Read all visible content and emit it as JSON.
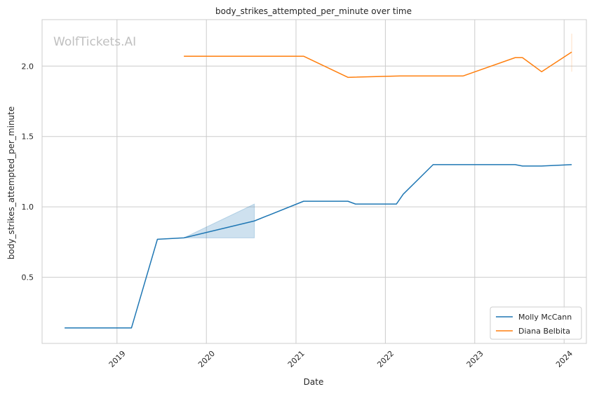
{
  "chart_data": {
    "type": "line",
    "title": "body_strikes_attempted_per_minute over time",
    "xlabel": "Date",
    "ylabel": "body_strikes_attempted_per_minute",
    "watermark": "WolfTickets.AI",
    "x_ticks": [
      "2019",
      "2020",
      "2021",
      "2022",
      "2023",
      "2024"
    ],
    "y_ticks": [
      "0.5",
      "1.0",
      "1.5",
      "2.0"
    ],
    "xlim": [
      "2018-03-01",
      "2024-04-01"
    ],
    "ylim": [
      0.03,
      2.33
    ],
    "grid": true,
    "legend_position": "lower-right",
    "series": [
      {
        "name": "Molly McCann",
        "color": "#1f77b4",
        "points": [
          [
            "2018-06-01",
            0.14
          ],
          [
            "2019-03-01",
            0.14
          ],
          [
            "2019-06-15",
            0.77
          ],
          [
            "2019-10-01",
            0.78
          ],
          [
            "2020-07-15",
            0.9
          ],
          [
            "2021-02-01",
            1.04
          ],
          [
            "2021-08-01",
            1.04
          ],
          [
            "2021-09-01",
            1.02
          ],
          [
            "2022-02-15",
            1.02
          ],
          [
            "2022-03-15",
            1.09
          ],
          [
            "2022-07-15",
            1.3
          ],
          [
            "2023-06-15",
            1.3
          ],
          [
            "2023-07-15",
            1.29
          ],
          [
            "2023-10-01",
            1.29
          ],
          [
            "2024-02-01",
            1.3
          ]
        ],
        "band": [
          [
            "2019-10-01",
            0.78,
            0.78
          ],
          [
            "2020-07-15",
            0.78,
            1.02
          ]
        ]
      },
      {
        "name": "Diana Belbita",
        "color": "#ff7f0e",
        "points": [
          [
            "2019-10-01",
            2.07
          ],
          [
            "2021-02-01",
            2.07
          ],
          [
            "2021-08-01",
            1.92
          ],
          [
            "2022-03-01",
            1.93
          ],
          [
            "2022-11-15",
            1.93
          ],
          [
            "2023-06-15",
            2.06
          ],
          [
            "2023-07-15",
            2.06
          ],
          [
            "2023-10-01",
            1.96
          ],
          [
            "2024-02-01",
            2.1
          ]
        ],
        "band": [
          [
            "2024-02-01",
            1.96,
            2.23
          ]
        ]
      }
    ]
  }
}
